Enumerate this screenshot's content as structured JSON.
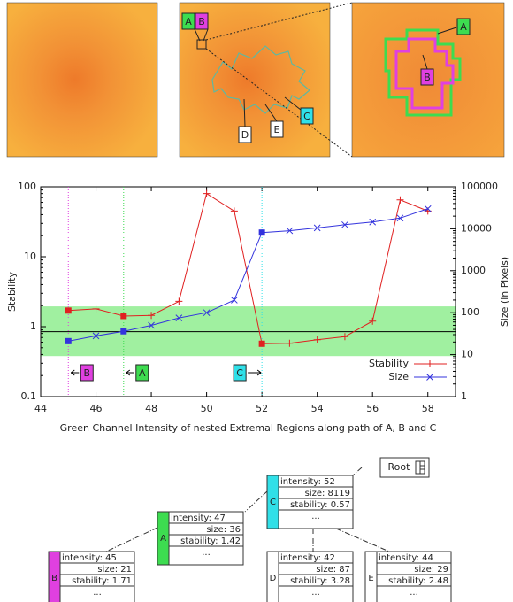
{
  "images": {
    "labels": [
      {
        "text": "A",
        "color": "#3ddc50"
      },
      {
        "text": "B",
        "color": "#e040e0"
      },
      {
        "text": "C",
        "color": "#30e0e8"
      },
      {
        "text": "D",
        "color": "#ffffff"
      },
      {
        "text": "E",
        "color": "#ffffff"
      },
      {
        "text": "A",
        "color": "#3ddc50"
      },
      {
        "text": "B",
        "color": "#e040e0"
      }
    ]
  },
  "chart_data": {
    "type": "line",
    "xlabel": "Green Channel Intensity of nested Extremal Regions along path of A, B and C",
    "ylabel": "Stability",
    "y2label": "Size (in Pixels)",
    "x": [
      45,
      46,
      47,
      48,
      49,
      50,
      51,
      52,
      53,
      54,
      55,
      56,
      57,
      58
    ],
    "series": [
      {
        "name": "Stability",
        "color": "#e02020",
        "marker": "plus",
        "values": [
          1.7,
          1.8,
          1.42,
          1.45,
          2.3,
          80,
          45,
          0.57,
          0.58,
          0.65,
          0.72,
          1.2,
          65,
          45
        ]
      },
      {
        "name": "Size",
        "color": "#3333dd",
        "marker": "cross",
        "axis": "y2",
        "values": [
          21,
          28,
          36,
          50,
          75,
          100,
          200,
          8119,
          9000,
          10500,
          12500,
          14500,
          18000,
          30000
        ]
      }
    ],
    "xlim": [
      44,
      59
    ],
    "xticks": [
      44,
      46,
      48,
      50,
      52,
      54,
      56,
      58
    ],
    "ylim": [
      0.1,
      100
    ],
    "yticks": [
      0.1,
      1,
      10,
      100
    ],
    "ylog": true,
    "y2lim": [
      1,
      100000
    ],
    "y2ticks": [
      1,
      10,
      100,
      1000,
      10000,
      100000
    ],
    "y2log": true,
    "band": [
      0.38,
      1.95
    ],
    "band_color": "#a0f0a0",
    "hline": 0.85,
    "markers": [
      {
        "x": 45,
        "label": "B",
        "color": "#e040e0"
      },
      {
        "x": 47,
        "label": "A",
        "color": "#3ddc50"
      },
      {
        "x": 52,
        "label": "C",
        "color": "#30e0e8"
      }
    ],
    "legend": "lower right"
  },
  "tree": {
    "root": "Root",
    "nodes": [
      {
        "label": "C",
        "color": "#30e0e8",
        "rows": [
          "intensity: 52",
          "size: 8119",
          "stability: 0.57",
          "..."
        ]
      },
      {
        "label": "A",
        "color": "#3ddc50",
        "rows": [
          "intensity: 47",
          "size: 36",
          "stability: 1.42",
          "..."
        ]
      },
      {
        "label": "B",
        "color": "#e040e0",
        "rows": [
          "intensity: 45",
          "size: 21",
          "stability: 1.71",
          "..."
        ]
      },
      {
        "label": "D",
        "color": "#ffffff",
        "rows": [
          "intensity: 42",
          "size: 87",
          "stability: 3.28",
          "..."
        ]
      },
      {
        "label": "E",
        "color": "#ffffff",
        "rows": [
          "intensity: 44",
          "size: 29",
          "stability: 2.48",
          "..."
        ]
      }
    ]
  }
}
